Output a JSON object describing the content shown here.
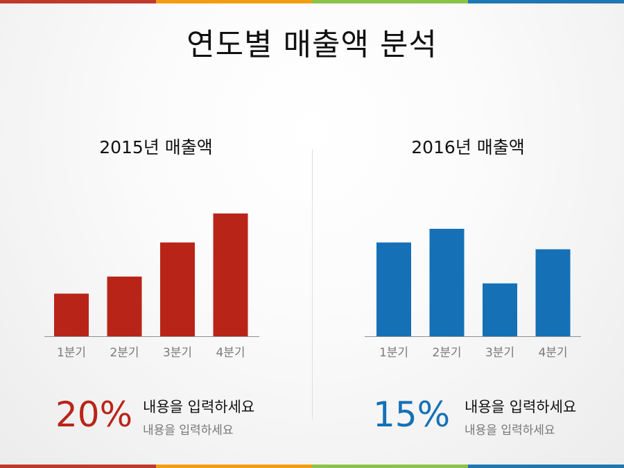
{
  "page_title": "연도별 매출액 분석",
  "colors": {
    "red": "#b92418",
    "blue": "#1570b6",
    "axis": "#8f8f8f",
    "tick_label": "#7a7a7a",
    "divider": "#dedede"
  },
  "stripe_colors": [
    "#c0392b",
    "#f39c12",
    "#8bc34a",
    "#1f77b4"
  ],
  "chart_data": [
    {
      "type": "bar",
      "title": "2015년 매출액",
      "categories": [
        "1분기",
        "2분기",
        "3분기",
        "4분기"
      ],
      "values": [
        25,
        35,
        55,
        72
      ],
      "ylim": [
        0,
        100
      ],
      "color": "#b92418",
      "grid": false,
      "percent": "20%",
      "desc_main": "내용을 입력하세요",
      "desc_sub": "내용을 입력하세요"
    },
    {
      "type": "bar",
      "title": "2016년 매출액",
      "categories": [
        "1분기",
        "2분기",
        "3분기",
        "4분기"
      ],
      "values": [
        55,
        63,
        31,
        51
      ],
      "ylim": [
        0,
        100
      ],
      "color": "#1570b6",
      "grid": false,
      "percent": "15%",
      "desc_main": "내용을 입력하세요",
      "desc_sub": "내용을 입력하세요"
    }
  ]
}
